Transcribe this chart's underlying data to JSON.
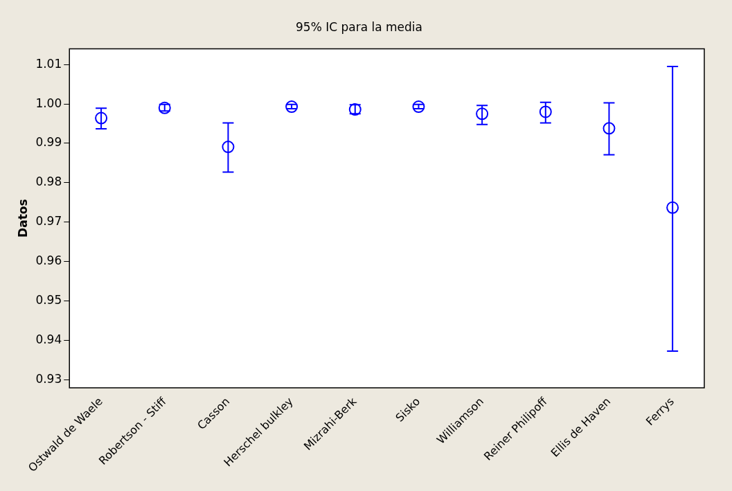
{
  "chart_data": {
    "type": "scatter",
    "title": "95% IC para la media",
    "ylabel": "Datos",
    "categories": [
      "Ostwald de Waele",
      "Robertson - Stiff",
      "Casson",
      "Herschel bulkley",
      "Mizrahi-Berk",
      "Sisko",
      "Williamson",
      "Reiner Philipoff",
      "Ellis de Haven",
      "Ferrys"
    ],
    "series": [
      {
        "color": "#0000ff",
        "values": [
          0.9964,
          0.999,
          0.9891,
          0.9993,
          0.9986,
          0.9993,
          0.9975,
          0.998,
          0.9938,
          0.9737
        ],
        "errors": [
          [
            0.9937,
            0.9989
          ],
          [
            0.9982,
            0.9999
          ],
          [
            0.9827,
            0.9952
          ],
          [
            0.9988,
            0.9999
          ],
          [
            0.9975,
            0.9998
          ],
          [
            0.9988,
            0.9999
          ],
          [
            0.9948,
            0.9996
          ],
          [
            0.9952,
            1.0004
          ],
          [
            0.9871,
            1.0003
          ],
          [
            0.9373,
            1.0095
          ]
        ]
      }
    ],
    "ylim": [
      0.928,
      1.014
    ],
    "yticks": [
      0.93,
      0.94,
      0.95,
      0.96,
      0.97,
      0.98,
      0.99,
      {
        "value": 1.0,
        "label": "1.00"
      },
      1.01
    ],
    "marker": "circle",
    "grid": false,
    "legend": false
  }
}
